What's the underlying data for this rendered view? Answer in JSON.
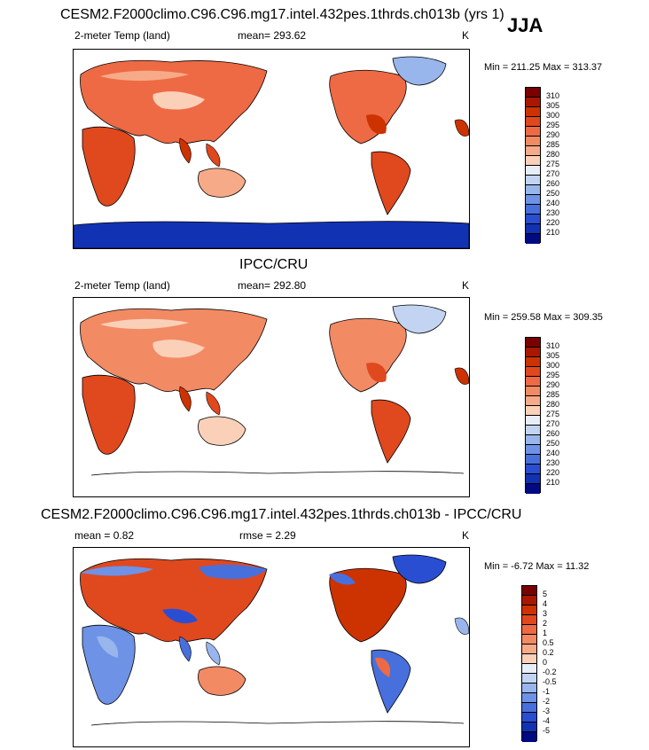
{
  "season": "JJA",
  "panels": [
    {
      "id": "model",
      "title": "CESM2.F2000climo.C96.C96.mg17.intel.432pes.1thrds.ch013b (yrs 1)",
      "left_label": "2-meter Temp (land)",
      "center_label": "mean= 293.62",
      "units": "K",
      "minmax": "Min = 211.25 Max = 313.37",
      "legend_labels": [
        "310",
        "305",
        "300",
        "295",
        "290",
        "285",
        "280",
        "275",
        "270",
        "260",
        "250",
        "240",
        "230",
        "220",
        "210"
      ]
    },
    {
      "id": "obs",
      "title": "IPCC/CRU",
      "left_label": "2-meter Temp (land)",
      "center_label": "mean= 292.80",
      "units": "K",
      "minmax": "Min = 259.58 Max = 309.35",
      "legend_labels": [
        "310",
        "305",
        "300",
        "295",
        "290",
        "285",
        "280",
        "275",
        "270",
        "260",
        "250",
        "240",
        "230",
        "220",
        "210"
      ]
    },
    {
      "id": "diff",
      "title": "CESM2.F2000climo.C96.C96.mg17.intel.432pes.1thrds.ch013b - IPCC/CRU",
      "left_label": "mean =   0.82",
      "center_label": "rmse =   2.29",
      "units": "K",
      "minmax": "Min =  -6.72 Max =  11.32",
      "legend_labels": [
        "5",
        "4",
        "3",
        "2",
        "1",
        "0.5",
        "0.2",
        "0",
        "-0.2",
        "-0.5",
        "-1",
        "-2",
        "-3",
        "-4",
        "-5"
      ]
    }
  ],
  "colors": {
    "scale": [
      "#7a0000",
      "#a81800",
      "#cc3300",
      "#e0481e",
      "#ee6a44",
      "#f28a64",
      "#f7aa88",
      "#fbd0b8",
      "#e8eef8",
      "#c2d4f2",
      "#98b6ec",
      "#6e92e6",
      "#4870dc",
      "#2a4ed2",
      "#1232b4",
      "#000a82"
    ]
  }
}
